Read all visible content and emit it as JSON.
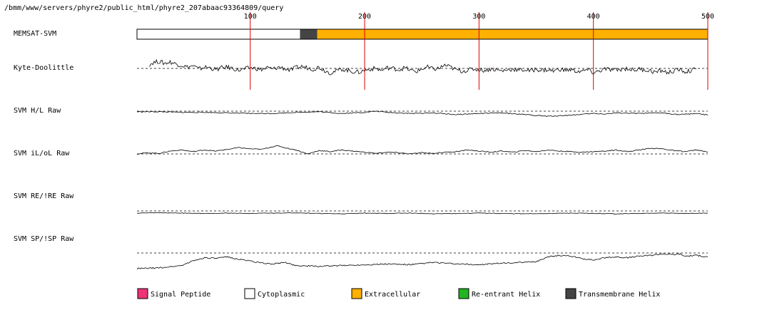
{
  "path_label": "/bmm/www/servers/phyre2/public_html/phyre2_207abaac93364809/query",
  "chart_data": {
    "type": "line",
    "x_axis": {
      "range": [
        1,
        500
      ],
      "ticks": [
        100,
        200,
        300,
        400,
        500
      ],
      "tick_labels": [
        "100",
        "200",
        "300",
        "400",
        "500"
      ]
    },
    "tracks": [
      {
        "name": "MEMSAT-SVM",
        "kind": "topology",
        "segments": [
          {
            "start": 1,
            "end": 143,
            "type": "Cytoplasmic"
          },
          {
            "start": 144,
            "end": 158,
            "type": "Transmembrane Helix"
          },
          {
            "start": 159,
            "end": 500,
            "type": "Extracellular"
          }
        ]
      },
      {
        "name": "Kyte-Doolittle",
        "kind": "profile",
        "y_range": [
          -1,
          1
        ],
        "threshold": 0,
        "points": [
          [
            12,
            0.3
          ],
          [
            15,
            0.45
          ],
          [
            20,
            0.55
          ],
          [
            25,
            0.4
          ],
          [
            30,
            0.5
          ],
          [
            35,
            0.35
          ],
          [
            40,
            0.25
          ],
          [
            45,
            0.1
          ],
          [
            50,
            0.2
          ],
          [
            55,
            -0.05
          ],
          [
            60,
            0.1
          ],
          [
            65,
            0.05
          ],
          [
            70,
            -0.1
          ],
          [
            75,
            0.05
          ],
          [
            80,
            0.1
          ],
          [
            85,
            0.0
          ],
          [
            90,
            -0.15
          ],
          [
            95,
            -0.05
          ],
          [
            100,
            0.05
          ],
          [
            105,
            0.0
          ],
          [
            110,
            -0.1
          ],
          [
            115,
            0.05
          ],
          [
            120,
            -0.05
          ],
          [
            125,
            0.1
          ],
          [
            130,
            0.0
          ],
          [
            135,
            -0.15
          ],
          [
            140,
            0.05
          ],
          [
            145,
            0.15
          ],
          [
            150,
            0.05
          ],
          [
            155,
            -0.05
          ],
          [
            160,
            0.1
          ],
          [
            165,
            -0.15
          ],
          [
            170,
            -0.35
          ],
          [
            175,
            -0.2
          ],
          [
            180,
            -0.05
          ],
          [
            185,
            -0.15
          ],
          [
            190,
            -0.25
          ],
          [
            195,
            -0.3
          ],
          [
            200,
            -0.15
          ],
          [
            205,
            -0.05
          ],
          [
            210,
            0.0
          ],
          [
            215,
            -0.15
          ],
          [
            220,
            0.05
          ],
          [
            225,
            0.0
          ],
          [
            230,
            -0.1
          ],
          [
            235,
            0.05
          ],
          [
            240,
            -0.15
          ],
          [
            245,
            -0.25
          ],
          [
            250,
            -0.05
          ],
          [
            255,
            0.1
          ],
          [
            260,
            -0.05
          ],
          [
            265,
            0.0
          ],
          [
            270,
            0.25
          ],
          [
            275,
            0.1
          ],
          [
            280,
            -0.1
          ],
          [
            285,
            -0.2
          ],
          [
            290,
            -0.15
          ],
          [
            295,
            -0.05
          ],
          [
            300,
            -0.1
          ],
          [
            305,
            -0.15
          ],
          [
            310,
            -0.05
          ],
          [
            315,
            -0.1
          ],
          [
            320,
            -0.2
          ],
          [
            325,
            -0.1
          ],
          [
            330,
            -0.05
          ],
          [
            335,
            -0.15
          ],
          [
            340,
            -0.1
          ],
          [
            345,
            -0.2
          ],
          [
            350,
            -0.05
          ],
          [
            355,
            -0.15
          ],
          [
            360,
            -0.1
          ],
          [
            365,
            -0.2
          ],
          [
            370,
            -0.05
          ],
          [
            375,
            -0.15
          ],
          [
            380,
            -0.1
          ],
          [
            385,
            -0.2
          ],
          [
            390,
            -0.25
          ],
          [
            395,
            -0.1
          ],
          [
            400,
            -0.35
          ],
          [
            405,
            -0.2
          ],
          [
            410,
            -0.05
          ],
          [
            415,
            -0.1
          ],
          [
            420,
            -0.15
          ],
          [
            425,
            -0.05
          ],
          [
            430,
            0.0
          ],
          [
            435,
            -0.15
          ],
          [
            440,
            -0.05
          ],
          [
            445,
            -0.1
          ],
          [
            450,
            -0.2
          ],
          [
            455,
            -0.3
          ],
          [
            460,
            -0.15
          ],
          [
            465,
            -0.35
          ],
          [
            470,
            -0.2
          ],
          [
            475,
            -0.1
          ],
          [
            480,
            -0.25
          ],
          [
            485,
            -0.2
          ],
          [
            490,
            -0.05
          ]
        ]
      },
      {
        "name": "SVM H/L Raw",
        "kind": "profile",
        "y_range": [
          -1,
          1
        ],
        "threshold": 0,
        "points": [
          [
            1,
            -0.05
          ],
          [
            20,
            -0.05
          ],
          [
            40,
            -0.1
          ],
          [
            60,
            -0.1
          ],
          [
            80,
            -0.15
          ],
          [
            100,
            -0.2
          ],
          [
            120,
            -0.2
          ],
          [
            140,
            -0.1
          ],
          [
            160,
            -0.05
          ],
          [
            180,
            -0.2
          ],
          [
            200,
            -0.1
          ],
          [
            210,
            0.0
          ],
          [
            220,
            -0.1
          ],
          [
            240,
            -0.2
          ],
          [
            260,
            -0.15
          ],
          [
            280,
            -0.3
          ],
          [
            300,
            -0.2
          ],
          [
            320,
            -0.15
          ],
          [
            340,
            -0.3
          ],
          [
            360,
            -0.45
          ],
          [
            380,
            -0.35
          ],
          [
            400,
            -0.2
          ],
          [
            410,
            -0.25
          ],
          [
            420,
            -0.15
          ],
          [
            440,
            -0.2
          ],
          [
            460,
            -0.15
          ],
          [
            475,
            -0.3
          ],
          [
            490,
            -0.2
          ],
          [
            500,
            -0.35
          ]
        ]
      },
      {
        "name": "SVM iL/oL Raw",
        "kind": "profile",
        "y_range": [
          -1,
          1
        ],
        "threshold": 0,
        "points": [
          [
            1,
            0.0
          ],
          [
            10,
            0.1
          ],
          [
            20,
            0.05
          ],
          [
            30,
            0.25
          ],
          [
            40,
            0.35
          ],
          [
            50,
            0.2
          ],
          [
            60,
            0.35
          ],
          [
            70,
            0.25
          ],
          [
            80,
            0.4
          ],
          [
            90,
            0.55
          ],
          [
            100,
            0.45
          ],
          [
            110,
            0.4
          ],
          [
            120,
            0.65
          ],
          [
            125,
            0.7
          ],
          [
            130,
            0.55
          ],
          [
            140,
            0.35
          ],
          [
            150,
            0.0
          ],
          [
            160,
            0.3
          ],
          [
            170,
            0.2
          ],
          [
            180,
            0.35
          ],
          [
            190,
            0.25
          ],
          [
            200,
            0.15
          ],
          [
            210,
            0.05
          ],
          [
            220,
            0.15
          ],
          [
            230,
            0.1
          ],
          [
            240,
            0.0
          ],
          [
            250,
            0.1
          ],
          [
            260,
            0.05
          ],
          [
            270,
            0.15
          ],
          [
            280,
            0.2
          ],
          [
            290,
            0.35
          ],
          [
            300,
            0.25
          ],
          [
            310,
            0.15
          ],
          [
            320,
            0.25
          ],
          [
            330,
            0.15
          ],
          [
            340,
            0.3
          ],
          [
            350,
            0.2
          ],
          [
            360,
            0.35
          ],
          [
            370,
            0.25
          ],
          [
            380,
            0.2
          ],
          [
            390,
            0.15
          ],
          [
            400,
            0.2
          ],
          [
            410,
            0.25
          ],
          [
            420,
            0.35
          ],
          [
            430,
            0.2
          ],
          [
            440,
            0.35
          ],
          [
            450,
            0.5
          ],
          [
            460,
            0.45
          ],
          [
            470,
            0.3
          ],
          [
            480,
            0.2
          ],
          [
            490,
            0.35
          ],
          [
            500,
            0.15
          ]
        ]
      },
      {
        "name": "SVM RE/!RE Raw",
        "kind": "profile",
        "y_range": [
          -1,
          1
        ],
        "threshold": 0,
        "points": [
          [
            1,
            -0.3
          ],
          [
            20,
            -0.25
          ],
          [
            40,
            -0.3
          ],
          [
            60,
            -0.35
          ],
          [
            80,
            -0.3
          ],
          [
            100,
            -0.35
          ],
          [
            120,
            -0.3
          ],
          [
            140,
            -0.25
          ],
          [
            160,
            -0.35
          ],
          [
            180,
            -0.4
          ],
          [
            200,
            -0.3
          ],
          [
            220,
            -0.35
          ],
          [
            240,
            -0.3
          ],
          [
            260,
            -0.4
          ],
          [
            280,
            -0.35
          ],
          [
            300,
            -0.3
          ],
          [
            320,
            -0.35
          ],
          [
            340,
            -0.4
          ],
          [
            360,
            -0.35
          ],
          [
            380,
            -0.3
          ],
          [
            400,
            -0.35
          ],
          [
            420,
            -0.4
          ],
          [
            440,
            -0.35
          ],
          [
            460,
            -0.3
          ],
          [
            480,
            -0.35
          ],
          [
            500,
            -0.3
          ]
        ]
      },
      {
        "name": "SVM SP/!SP Raw",
        "kind": "profile",
        "y_range": [
          -1,
          1
        ],
        "threshold": 0,
        "points": [
          [
            1,
            -1.0
          ],
          [
            20,
            -0.95
          ],
          [
            40,
            -0.8
          ],
          [
            50,
            -0.5
          ],
          [
            60,
            -0.3
          ],
          [
            70,
            -0.35
          ],
          [
            80,
            -0.25
          ],
          [
            90,
            -0.4
          ],
          [
            100,
            -0.5
          ],
          [
            110,
            -0.65
          ],
          [
            120,
            -0.7
          ],
          [
            130,
            -0.6
          ],
          [
            140,
            -0.8
          ],
          [
            160,
            -0.85
          ],
          [
            180,
            -0.8
          ],
          [
            200,
            -0.75
          ],
          [
            220,
            -0.7
          ],
          [
            240,
            -0.75
          ],
          [
            260,
            -0.6
          ],
          [
            280,
            -0.7
          ],
          [
            300,
            -0.75
          ],
          [
            320,
            -0.65
          ],
          [
            340,
            -0.6
          ],
          [
            350,
            -0.55
          ],
          [
            360,
            -0.25
          ],
          [
            370,
            -0.15
          ],
          [
            380,
            -0.2
          ],
          [
            390,
            -0.35
          ],
          [
            400,
            -0.45
          ],
          [
            410,
            -0.3
          ],
          [
            420,
            -0.25
          ],
          [
            430,
            -0.3
          ],
          [
            440,
            -0.2
          ],
          [
            450,
            -0.15
          ],
          [
            460,
            -0.05
          ],
          [
            470,
            -0.1
          ],
          [
            475,
            -0.05
          ],
          [
            480,
            -0.2
          ],
          [
            490,
            -0.15
          ],
          [
            500,
            -0.25
          ]
        ]
      }
    ],
    "legend": [
      {
        "label": "Signal Peptide",
        "color": "#ee3377"
      },
      {
        "label": "Cytoplasmic",
        "color": "#ffffff"
      },
      {
        "label": "Extracellular",
        "color": "#ffb000"
      },
      {
        "label": "Re-entrant Helix",
        "color": "#22b422"
      },
      {
        "label": "Transmembrane Helix",
        "color": "#444444"
      }
    ],
    "colors": {
      "tick_line": "#dd0000",
      "profile_line": "#000000",
      "threshold_line": "#000000",
      "border": "#000000"
    }
  }
}
